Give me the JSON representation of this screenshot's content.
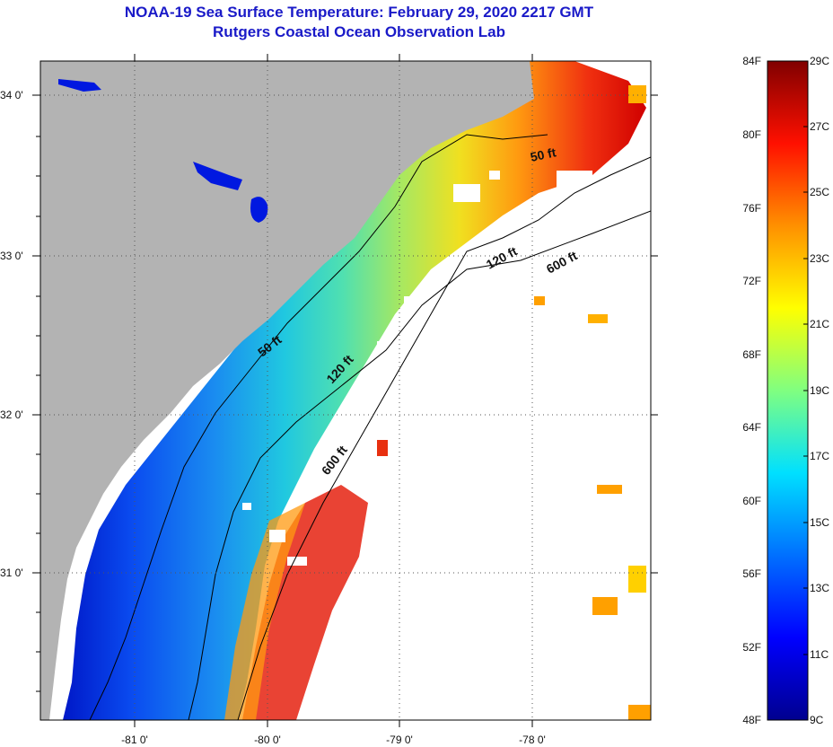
{
  "title": "NOAA-19 Sea Surface Temperature:  February 29, 2020 2217 GMT",
  "subtitle": "Rutgers Coastal Ocean Observation Lab",
  "map": {
    "lat_labels": [
      "34 0'",
      "33 0'",
      "32 0'",
      "31 0'"
    ],
    "lon_labels": [
      "-81 0'",
      "-80 0'",
      "-79 0'",
      "-78 0'"
    ],
    "depth_contours": [
      {
        "label": "50 ft"
      },
      {
        "label": "50 ft"
      },
      {
        "label": "120 ft"
      },
      {
        "label": "120 ft"
      },
      {
        "label": "600 ft"
      },
      {
        "label": "600 ft"
      }
    ],
    "colors": {
      "land": "#b3b3b3",
      "ocean_nodata": "#ffffff",
      "contour": "#000000"
    }
  },
  "colorbar": {
    "fahrenheit_labels": [
      "84F",
      "80F",
      "76F",
      "72F",
      "68F",
      "64F",
      "60F",
      "56F",
      "52F",
      "48F"
    ],
    "celsius_labels": [
      "29C",
      "27C",
      "25C",
      "23C",
      "21C",
      "19C",
      "17C",
      "15C",
      "13C",
      "11C",
      "9C"
    ],
    "range_c": [
      9,
      29
    ],
    "gradient": [
      "#00008f",
      "#0000ff",
      "#0080ff",
      "#00ffff",
      "#80ff80",
      "#ffff00",
      "#ff8000",
      "#ff0000",
      "#800000"
    ]
  }
}
